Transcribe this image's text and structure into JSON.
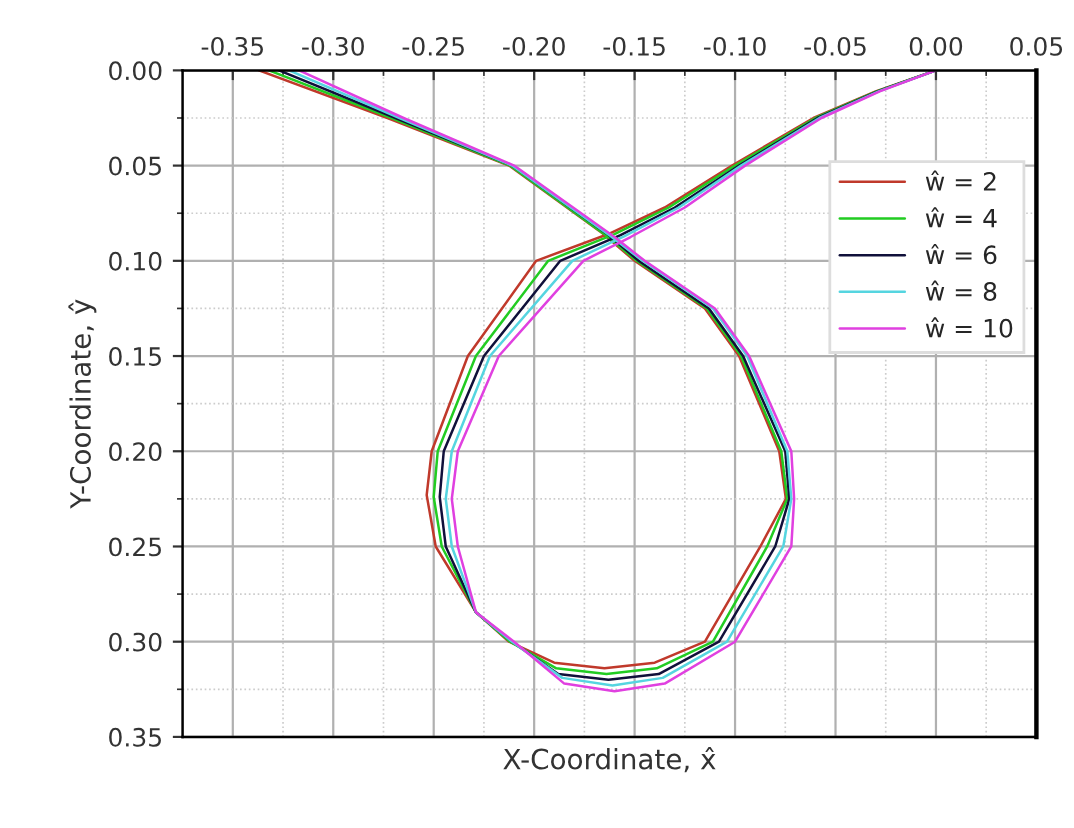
{
  "chart_data": {
    "type": "line",
    "xlabel": "X-Coordinate, x̂",
    "ylabel": "Y-Coordinate, ŷ",
    "xlim": [
      -0.375,
      0.05
    ],
    "xticks": [
      {
        "value": -0.35,
        "label": "-0.35"
      },
      {
        "value": -0.3,
        "label": "-0.30"
      },
      {
        "value": -0.25,
        "label": "-0.25"
      },
      {
        "value": -0.2,
        "label": "-0.20"
      },
      {
        "value": -0.15,
        "label": "-0.15"
      },
      {
        "value": -0.1,
        "label": "-0.10"
      },
      {
        "value": -0.05,
        "label": "-0.05"
      },
      {
        "value": 0,
        "label": "0.00"
      },
      {
        "value": 0.05,
        "label": "0.05"
      }
    ],
    "ylim": [
      0.35,
      0
    ],
    "yticks": [
      {
        "value": 0,
        "label": "0.00"
      },
      {
        "value": 0.05,
        "label": "0.05"
      },
      {
        "value": 0.1,
        "label": "0.10"
      },
      {
        "value": 0.15,
        "label": "0.15"
      },
      {
        "value": 0.2,
        "label": "0.20"
      },
      {
        "value": 0.25,
        "label": "0.25"
      },
      {
        "value": 0.3,
        "label": "0.30"
      },
      {
        "value": 0.35,
        "label": "0.35"
      }
    ],
    "grid": true,
    "legend": "right",
    "marker": "none",
    "line_style": "solid",
    "series": [
      {
        "name": "ŵ = 2",
        "color": "#c0392b",
        "x": [
          0,
          -0.03,
          -0.061,
          -0.1015,
          -0.135,
          -0.162,
          -0.199,
          -0.233,
          -0.251,
          -0.2535,
          -0.249,
          -0.229,
          -0.2125,
          -0.19,
          -0.165,
          -0.14,
          -0.115,
          -0.0874,
          -0.0747,
          -0.078,
          -0.098,
          -0.115,
          -0.15,
          -0.166,
          -0.2125,
          -0.273,
          -0.337
        ],
        "values": [
          0,
          0.011,
          0.025,
          0.05,
          0.072,
          0.0855,
          0.1,
          0.15,
          0.2,
          0.223,
          0.25,
          0.2845,
          0.3,
          0.311,
          0.314,
          0.311,
          0.3,
          0.25,
          0.225,
          0.2,
          0.15,
          0.125,
          0.1,
          0.0855,
          0.05,
          0.025,
          0
        ]
      },
      {
        "name": "ŵ = 4",
        "color": "#22cc22",
        "x": [
          0,
          -0.0295,
          -0.06,
          -0.1,
          -0.133,
          -0.16,
          -0.193,
          -0.229,
          -0.248,
          -0.25,
          -0.246,
          -0.229,
          -0.212,
          -0.189,
          -0.164,
          -0.139,
          -0.111,
          -0.084,
          -0.074,
          -0.077,
          -0.097,
          -0.114,
          -0.149,
          -0.165,
          -0.212,
          -0.271,
          -0.332
        ],
        "values": [
          0,
          0.011,
          0.025,
          0.05,
          0.072,
          0.086,
          0.1,
          0.15,
          0.2,
          0.224,
          0.25,
          0.2845,
          0.3,
          0.314,
          0.317,
          0.314,
          0.3,
          0.25,
          0.225,
          0.2,
          0.15,
          0.125,
          0.1,
          0.086,
          0.05,
          0.025,
          0
        ]
      },
      {
        "name": "ŵ = 6",
        "color": "#10103a",
        "x": [
          0,
          -0.029,
          -0.059,
          -0.098,
          -0.13,
          -0.157,
          -0.187,
          -0.225,
          -0.245,
          -0.247,
          -0.244,
          -0.229,
          -0.211,
          -0.188,
          -0.163,
          -0.138,
          -0.108,
          -0.08,
          -0.073,
          -0.075,
          -0.096,
          -0.113,
          -0.148,
          -0.163,
          -0.211,
          -0.269,
          -0.327
        ],
        "values": [
          0,
          0.011,
          0.025,
          0.05,
          0.072,
          0.0865,
          0.1,
          0.15,
          0.2,
          0.224,
          0.25,
          0.2845,
          0.3,
          0.317,
          0.32,
          0.317,
          0.3,
          0.25,
          0.225,
          0.2,
          0.15,
          0.125,
          0.1,
          0.0865,
          0.05,
          0.025,
          0
        ]
      },
      {
        "name": "ŵ = 8",
        "color": "#55d5e0",
        "x": [
          0,
          -0.0285,
          -0.058,
          -0.097,
          -0.128,
          -0.155,
          -0.181,
          -0.222,
          -0.241,
          -0.244,
          -0.241,
          -0.229,
          -0.211,
          -0.186,
          -0.161,
          -0.136,
          -0.104,
          -0.076,
          -0.072,
          -0.074,
          -0.094,
          -0.111,
          -0.146,
          -0.162,
          -0.211,
          -0.267,
          -0.322
        ],
        "values": [
          0,
          0.011,
          0.025,
          0.05,
          0.072,
          0.087,
          0.1,
          0.15,
          0.2,
          0.225,
          0.25,
          0.2845,
          0.3,
          0.319,
          0.323,
          0.319,
          0.3,
          0.25,
          0.225,
          0.2,
          0.15,
          0.125,
          0.1,
          0.087,
          0.05,
          0.025,
          0
        ]
      },
      {
        "name": "ŵ = 10",
        "color": "#e040e0",
        "x": [
          0,
          -0.028,
          -0.057,
          -0.095,
          -0.125,
          -0.152,
          -0.1755,
          -0.2176,
          -0.238,
          -0.241,
          -0.238,
          -0.229,
          -0.21,
          -0.185,
          -0.16,
          -0.135,
          -0.1,
          -0.072,
          -0.0706,
          -0.072,
          -0.093,
          -0.11,
          -0.145,
          -0.16,
          -0.21,
          -0.265,
          -0.317
        ],
        "values": [
          0,
          0.011,
          0.025,
          0.05,
          0.072,
          0.0875,
          0.1,
          0.15,
          0.2,
          0.225,
          0.25,
          0.2845,
          0.3,
          0.322,
          0.326,
          0.322,
          0.3,
          0.25,
          0.225,
          0.2,
          0.15,
          0.125,
          0.1,
          0.0875,
          0.05,
          0.025,
          0
        ]
      }
    ]
  }
}
